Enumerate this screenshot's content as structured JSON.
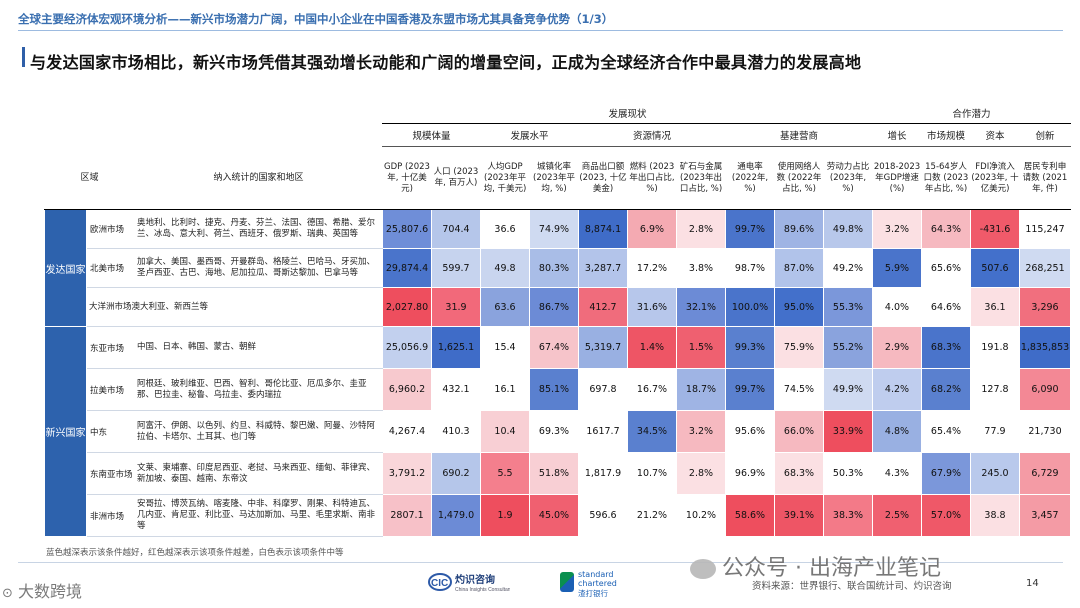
{
  "header": {
    "topline": "全球主要经济体宏观环境分析——新兴市场潜力广阔，中国中小企业在中国香港及东盟市场尤其具备竞争优势（1/3）",
    "title": "与发达国家市场相比，新兴市场凭借其强劲增长动能和广阔的增量空间，正成为全球经济合作中最具潜力的发展高地"
  },
  "table": {
    "group_headers": {
      "status": "发展现状",
      "potential": "合作潜力"
    },
    "col_region": "区域",
    "col_countries": "纳入统计的国家和地区",
    "mid_headers": [
      "规模体量",
      "发展水平",
      "资源情况",
      "基建营商",
      "增长",
      "市场规模",
      "资本",
      "创新"
    ],
    "columns": [
      "GDP (2023年, 十亿美元)",
      "人口 (2023年, 百万人)",
      "人均GDP (2023年平均, 千美元)",
      "城镇化率 (2023年平均, %)",
      "商品出口额 (2023, 十亿美金)",
      "燃料 (2023年出口占比, %)",
      "矿石与金属 (2023年出口占比, %)",
      "通电率 (2022年, %)",
      "使用网络人数 (2022年占比, %)",
      "劳动力占比 (2023年, %)",
      "2018-2023年GDP增速 (%)",
      "15-64岁人口数 (2023年占比, %)",
      "FDI净流入 (2023年, 十亿美元)",
      "居民专利申请数 (2021年, 件)"
    ],
    "regions": [
      {
        "name": "发达国家",
        "rows": [
          {
            "sub": "欧洲市场",
            "countries": "奥地利、比利时、捷克、丹麦、芬兰、法国、德国、希腊、爱尔兰、冰岛、意大利、荷兰、西班牙、俄罗斯、瑞典、英国等",
            "values": [
              "25,807.6",
              "704.4",
              "36.6",
              "74.9%",
              "8,874.1",
              "6.9%",
              "2.8%",
              "99.7%",
              "89.6%",
              "49.8%",
              "3.2%",
              "64.3%",
              "-431.6",
              "115,247"
            ],
            "colors": [
              "#6f8ed8",
              "#b5c6ea",
              "#ffffff",
              "#cfdaf1",
              "#3f6cc8",
              "#f4aab2",
              "#fbe0e3",
              "#4a74cb",
              "#9fb4e4",
              "#b8c8eb",
              "#fbe0e3",
              "#f6b9c0",
              "#f05a6a",
              "#ffffff"
            ]
          },
          {
            "sub": "北美市场",
            "countries": "加拿大、美国、墨西哥、开曼群岛、格陵兰、巴哈马、牙买加、圣卢西亚、古巴、海地、尼加拉瓜、哥斯达黎加、巴拿马等",
            "values": [
              "29,874.4",
              "599.7",
              "49.8",
              "80.3%",
              "3,287.7",
              "17.2%",
              "3.8%",
              "98.7%",
              "87.0%",
              "49.2%",
              "5.9%",
              "65.6%",
              "507.6",
              "268,251"
            ],
            "colors": [
              "#4a74cb",
              "#c6d3ee",
              "#c9d5ef",
              "#a9bde7",
              "#b3c4ea",
              "#ffffff",
              "#ffffff",
              "#ffffff",
              "#b1c3ea",
              "#ffffff",
              "#4a74cb",
              "#ffffff",
              "#4370cb",
              "#cfdaf1"
            ]
          },
          {
            "sub": "",
            "countries": "大洋洲市场澳大利亚、新西兰等",
            "values": [
              "2,027.80",
              "31.9",
              "63.6",
              "86.7%",
              "412.7",
              "31.6%",
              "32.1%",
              "100.0%",
              "95.0%",
              "55.3%",
              "4.0%",
              "64.6%",
              "36.1",
              "3,296"
            ],
            "colors": [
              "#ee4e5e",
              "#f2697a",
              "#8aa3dd",
              "#6c8bd6",
              "#f06c7c",
              "#b7c7eb",
              "#6c8bd6",
              "#4a74cb",
              "#4370cb",
              "#7b97da",
              "#ffffff",
              "#ffffff",
              "#fbe0e3",
              "#f16f7e"
            ]
          }
        ]
      },
      {
        "name": "新兴国家",
        "rows": [
          {
            "sub": "东亚市场",
            "countries": "中国、日本、韩国、蒙古、朝鲜",
            "values": [
              "25,056.9",
              "1,625.1",
              "15.4",
              "67.4%",
              "5,319.7",
              "1.4%",
              "1.5%",
              "99.3%",
              "75.9%",
              "55.2%",
              "2.9%",
              "68.3%",
              "191.8",
              "1,835,853"
            ],
            "colors": [
              "#c2d0ee",
              "#3f6cc8",
              "#ffffff",
              "#f6c4ca",
              "#99b0e2",
              "#ee5565",
              "#ef6070",
              "#5a80cf",
              "#fbe0e3",
              "#8aa3dd",
              "#f6b9c0",
              "#4a74cb",
              "#ffffff",
              "#3f6cc8"
            ]
          },
          {
            "sub": "拉美市场",
            "countries": "阿根廷、玻利维亚、巴西、智利、哥伦比亚、厄瓜多尔、圭亚那、巴拉圭、秘鲁、乌拉圭、委内瑞拉",
            "values": [
              "6,960.2",
              "432.1",
              "16.1",
              "85.1%",
              "697.8",
              "16.7%",
              "18.7%",
              "99.7%",
              "74.5%",
              "49.9%",
              "4.2%",
              "68.2%",
              "127.8",
              "6,090"
            ],
            "colors": [
              "#f7c9ce",
              "#ffffff",
              "#ffffff",
              "#5a80cf",
              "#ffffff",
              "#ffffff",
              "#9fb4e4",
              "#5a80cf",
              "#ffffff",
              "#cfdaf1",
              "#bfcdee",
              "#5a80cf",
              "#ffffff",
              "#f38895"
            ]
          },
          {
            "sub": "中东",
            "countries": "阿富汗、伊朗、以色列、约旦、科威特、黎巴嫩、阿曼、沙特阿拉伯、卡塔尔、土耳其、也门等",
            "values": [
              "4,267.4",
              "410.3",
              "10.4",
              "69.3%",
              "1617.7",
              "34.5%",
              "3.2%",
              "95.6%",
              "66.0%",
              "33.9%",
              "4.8%",
              "65.4%",
              "77.9",
              "21,730"
            ],
            "colors": [
              "#ffffff",
              "#ffffff",
              "#f8cfd4",
              "#ffffff",
              "#ffffff",
              "#5a80cf",
              "#f6b9c0",
              "#ffffff",
              "#f6b9c0",
              "#ee4e5e",
              "#99b0e2",
              "#ffffff",
              "#ffffff",
              "#ffffff"
            ]
          },
          {
            "sub": "东南亚市场",
            "countries": "文莱、柬埔寨、印度尼西亚、老挝、马来西亚、缅甸、菲律宾、新加坡、泰国、越南、东帝汶",
            "values": [
              "3,791.2",
              "690.2",
              "5.5",
              "51.8%",
              "1,817.9",
              "10.7%",
              "2.8%",
              "96.9%",
              "68.3%",
              "50.3%",
              "4.3%",
              "67.9%",
              "245.0",
              "6,729"
            ],
            "colors": [
              "#f9d6da",
              "#b5c6ea",
              "#f47f8d",
              "#f8cfd4",
              "#ffffff",
              "#ffffff",
              "#fbe0e3",
              "#ffffff",
              "#fbe0e3",
              "#ffffff",
              "#ffffff",
              "#7b97da",
              "#b9c9ec",
              "#f49ba5"
            ]
          },
          {
            "sub": "非洲市场",
            "countries": "安哥拉、博茨瓦纳、喀麦隆、中非、科摩罗、刚果、科特迪瓦、几内亚、肯尼亚、利比亚、马达加斯加、马里、毛里求斯、南非等",
            "values": [
              "2807.1",
              "1,479.0",
              "1.9",
              "45.0%",
              "596.6",
              "21.2%",
              "10.2%",
              "58.6%",
              "39.1%",
              "38.3%",
              "2.5%",
              "57.0%",
              "38.8",
              "3,457"
            ],
            "colors": [
              "#f7c1c8",
              "#6c8bd6",
              "#ee4e5e",
              "#f06070",
              "#ffffff",
              "#ffffff",
              "#ffffff",
              "#ee4e5e",
              "#ee5565",
              "#f37a88",
              "#f06070",
              "#ef5868",
              "#fbe0e3",
              "#f49ba5"
            ]
          }
        ]
      }
    ]
  },
  "note": "蓝色越深表示该条件越好，红色越深表示该项条件越差，白色表示该项条件中等",
  "footer": {
    "logo1_text": "CIC 灼识咨询",
    "logo1_sub": "China Insights Consultancy",
    "logo2_text": "standard chartered",
    "logo2_sub": "渣打银行",
    "source": "资料来源：世界银行、联合国统计司、灼识咨询",
    "page": "14",
    "wechat": "公众号 · 出海产业笔记",
    "watermark": "大数跨境"
  }
}
